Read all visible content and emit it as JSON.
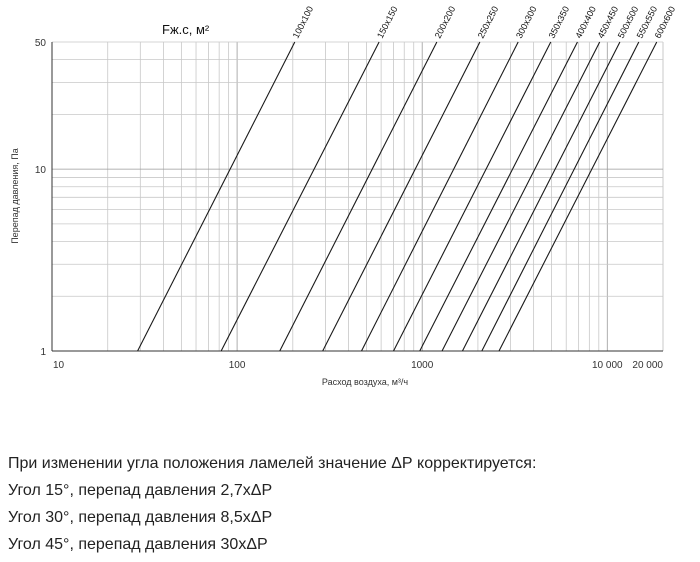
{
  "chart_data": {
    "type": "line",
    "x_scale": "log",
    "y_scale": "log",
    "xlim": [
      10,
      20000
    ],
    "ylim": [
      1,
      50
    ],
    "grid": true,
    "legend": "none",
    "title": "Fж.с, м²",
    "xlabel": "Расход воздуха, м³/ч",
    "ylabel": "Перепад давления, Па",
    "x_ticks": [
      {
        "value": 10,
        "label": "10"
      },
      {
        "value": 100,
        "label": "100"
      },
      {
        "value": 1000,
        "label": "1000"
      },
      {
        "value": 10000,
        "label": "10 000"
      },
      {
        "value": 20000,
        "label": "20 000"
      }
    ],
    "y_ticks": [
      {
        "value": 1,
        "label": "1"
      },
      {
        "value": 10,
        "label": "10"
      },
      {
        "value": 50,
        "label": "50"
      }
    ],
    "series": [
      {
        "name": "100x100",
        "points": [
          [
            29,
            1
          ],
          [
            205,
            50
          ]
        ]
      },
      {
        "name": "150x150",
        "points": [
          [
            82,
            1
          ],
          [
            585,
            50
          ]
        ]
      },
      {
        "name": "200x200",
        "points": [
          [
            170,
            1
          ],
          [
            1200,
            50
          ]
        ]
      },
      {
        "name": "250x250",
        "points": [
          [
            290,
            1
          ],
          [
            2050,
            50
          ]
        ]
      },
      {
        "name": "300x300",
        "points": [
          [
            470,
            1
          ],
          [
            3300,
            50
          ]
        ]
      },
      {
        "name": "350x350",
        "points": [
          [
            700,
            1
          ],
          [
            4950,
            50
          ]
        ]
      },
      {
        "name": "400x400",
        "points": [
          [
            970,
            1
          ],
          [
            6900,
            50
          ]
        ]
      },
      {
        "name": "450x450",
        "points": [
          [
            1280,
            1
          ],
          [
            9100,
            50
          ]
        ]
      },
      {
        "name": "500x500",
        "points": [
          [
            1650,
            1
          ],
          [
            11700,
            50
          ]
        ]
      },
      {
        "name": "550x550",
        "points": [
          [
            2100,
            1
          ],
          [
            14800,
            50
          ]
        ]
      },
      {
        "name": "600x600",
        "points": [
          [
            2600,
            1
          ],
          [
            18500,
            50
          ]
        ]
      }
    ],
    "line_color": "#1a1a1a",
    "grid_color": "#c8c8c8"
  },
  "notes": [
    "При изменении угла положения ламелей значение ΔР корректируется:",
    "Угол 15°, перепад давления 2,7хΔР",
    "Угол 30°, перепад давления 8,5хΔР",
    "Угол 45°, перепад давления 30хΔР"
  ]
}
